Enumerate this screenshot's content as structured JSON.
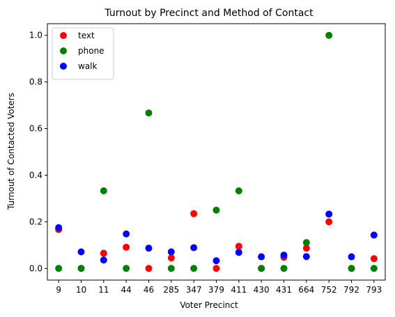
{
  "chart_data": {
    "type": "scatter",
    "title": "Turnout by Precinct and Method of Contact",
    "xlabel": "Voter Precinct",
    "ylabel": "Turnout of Contacted Voters",
    "categories": [
      "9",
      "10",
      "11",
      "44",
      "46",
      "285",
      "347",
      "379",
      "411",
      "430",
      "431",
      "664",
      "752",
      "792",
      "793"
    ],
    "ylim": [
      -0.05,
      1.05
    ],
    "yticks": [
      "0.0",
      "0.2",
      "0.4",
      "0.6",
      "0.8",
      "1.0"
    ],
    "grid": false,
    "legend_position": "top-left",
    "series": [
      {
        "name": "text",
        "color": "#ff0000",
        "values": [
          0.167,
          0.0,
          0.065,
          0.091,
          0.0,
          0.045,
          0.235,
          0.0,
          0.095,
          0.0,
          0.048,
          0.087,
          0.2,
          0.0,
          0.042
        ]
      },
      {
        "name": "phone",
        "color": "#008000",
        "values": [
          0.0,
          0.0,
          0.333,
          0.0,
          0.667,
          0.0,
          0.0,
          0.25,
          0.333,
          0.0,
          0.0,
          0.111,
          1.0,
          0.0,
          0.0
        ]
      },
      {
        "name": "walk",
        "color": "#0000ff",
        "values": [
          0.175,
          0.071,
          0.036,
          0.148,
          0.087,
          0.071,
          0.089,
          0.033,
          0.069,
          0.05,
          0.057,
          0.051,
          0.233,
          0.05,
          0.143
        ]
      }
    ]
  }
}
